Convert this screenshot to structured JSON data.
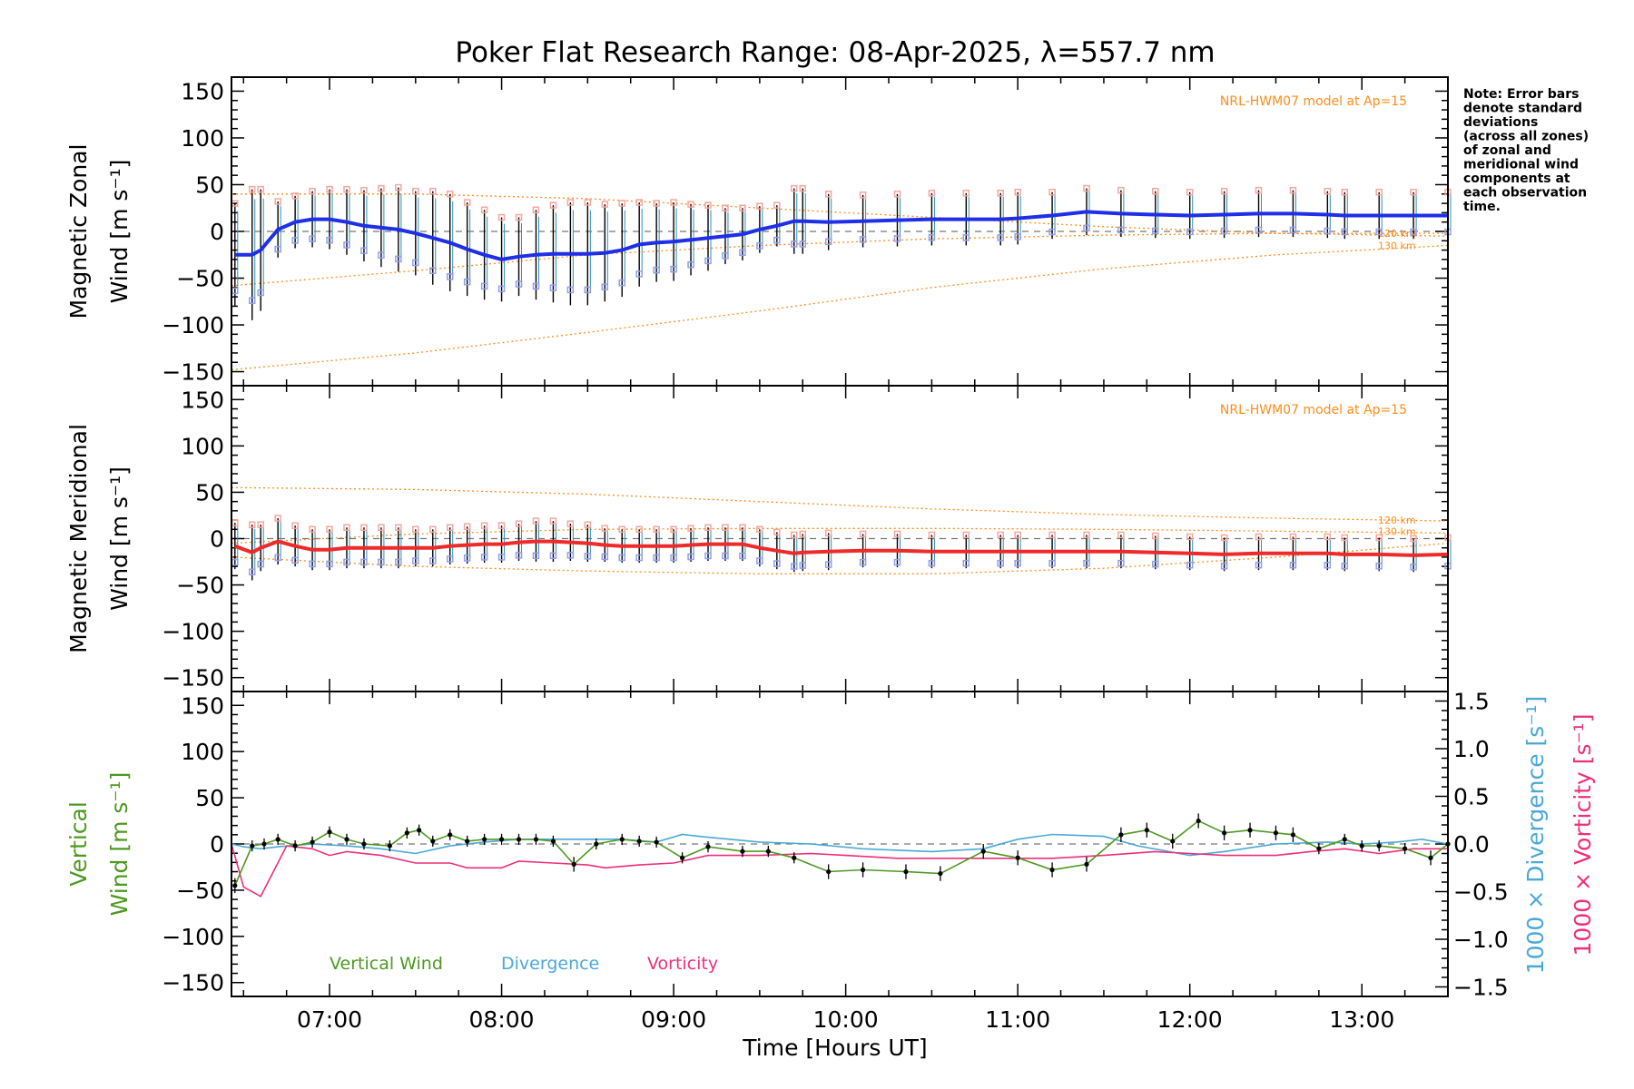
{
  "figure": {
    "title": "Poker Flat Research Range: 08-Apr-2025, λ=557.7 nm",
    "note_lines": [
      "Note: Error bars",
      "denote standard",
      "deviations",
      "(across all zones)",
      "of zonal and",
      "meridional wind",
      "components at",
      "each observation",
      "time."
    ],
    "xlabel": "Time [Hours UT]",
    "model_label": "NRL-HWM07 model at Ap=15",
    "alt_labels": [
      "120 km",
      "130 km"
    ]
  },
  "colors": {
    "zonal": "#1f2fe8",
    "meridional": "#ee2a2a",
    "vertical": "#4d9a1f",
    "divergence": "#4aa8d8",
    "vorticity": "#ee2f7a",
    "model": "#ff8c1a",
    "zone_low": "#8fa0ee",
    "zone_high": "#f4a7a0"
  },
  "chart_data": [
    {
      "type": "line",
      "name": "zonal",
      "ylabel_lines": [
        "Magnetic Zonal",
        "Wind [m s⁻¹]"
      ],
      "xlim": [
        6.43,
        13.5
      ],
      "ylim": [
        -165,
        165
      ],
      "yticks": [
        150,
        100,
        50,
        0,
        -50,
        -100,
        -150
      ],
      "xticks": [
        "07:00",
        "08:00",
        "09:00",
        "10:00",
        "11:00",
        "12:00",
        "13:00"
      ],
      "x": [
        6.45,
        6.55,
        6.6,
        6.7,
        6.8,
        6.9,
        7.0,
        7.1,
        7.2,
        7.3,
        7.4,
        7.5,
        7.6,
        7.7,
        7.8,
        7.9,
        8.0,
        8.1,
        8.2,
        8.3,
        8.4,
        8.5,
        8.6,
        8.7,
        8.8,
        8.9,
        9.0,
        9.1,
        9.2,
        9.3,
        9.4,
        9.5,
        9.6,
        9.7,
        9.75,
        9.9,
        10.1,
        10.3,
        10.5,
        10.7,
        10.9,
        11.0,
        11.2,
        11.4,
        11.6,
        11.8,
        12.0,
        12.2,
        12.4,
        12.6,
        12.8,
        12.9,
        13.1,
        13.3,
        13.5
      ],
      "values": [
        -25,
        -25,
        -20,
        2,
        10,
        13,
        13,
        10,
        6,
        4,
        2,
        -2,
        -7,
        -12,
        -19,
        -25,
        -30,
        -27,
        -25,
        -24,
        -24,
        -24,
        -23,
        -20,
        -14,
        -12,
        -11,
        -9,
        -7,
        -5,
        -3,
        2,
        6,
        11,
        11,
        10,
        11,
        12,
        13,
        13,
        13,
        14,
        17,
        21,
        19,
        18,
        17,
        18,
        19,
        19,
        18,
        17,
        17,
        17,
        17
      ],
      "error": [
        55,
        70,
        65,
        30,
        28,
        30,
        32,
        35,
        38,
        42,
        45,
        45,
        50,
        52,
        50,
        48,
        45,
        42,
        48,
        52,
        55,
        55,
        52,
        50,
        45,
        42,
        42,
        38,
        35,
        30,
        28,
        25,
        22,
        35,
        35,
        30,
        28,
        28,
        28,
        28,
        28,
        28,
        25,
        25,
        25,
        25,
        25,
        25,
        25,
        25,
        25,
        25,
        25,
        25,
        25
      ],
      "model_120": {
        "x": [
          6.43,
          7.5,
          8.5,
          9.5,
          10.5,
          11.5,
          12.5,
          13.5
        ],
        "values": [
          -58,
          -42,
          -25,
          -15,
          -8,
          -4,
          -2,
          -2
        ]
      },
      "model_130": {
        "x": [
          6.43,
          7.5,
          8.5,
          9.5,
          10.5,
          11.5,
          12.5,
          13.5
        ],
        "values": [
          -148,
          -130,
          -108,
          -85,
          -60,
          -40,
          -25,
          -15
        ]
      },
      "model_upper": {
        "x": [
          6.43,
          7.5,
          8.5,
          9.5,
          10.5,
          11.5,
          12.5,
          13.5
        ],
        "values": [
          40,
          40,
          35,
          25,
          15,
          5,
          -2,
          -5
        ]
      }
    },
    {
      "type": "line",
      "name": "meridional",
      "ylabel_lines": [
        "Magnetic Meridional",
        "Wind [m s⁻¹]"
      ],
      "xlim": [
        6.43,
        13.5
      ],
      "ylim": [
        -165,
        165
      ],
      "yticks": [
        150,
        100,
        50,
        0,
        -50,
        -100,
        -150
      ],
      "x": [
        6.45,
        6.55,
        6.6,
        6.7,
        6.8,
        6.9,
        7.0,
        7.1,
        7.2,
        7.3,
        7.4,
        7.5,
        7.6,
        7.7,
        7.8,
        7.9,
        8.0,
        8.1,
        8.2,
        8.3,
        8.4,
        8.5,
        8.6,
        8.7,
        8.8,
        8.9,
        9.0,
        9.1,
        9.2,
        9.3,
        9.4,
        9.5,
        9.6,
        9.7,
        9.75,
        9.9,
        10.1,
        10.3,
        10.5,
        10.7,
        10.9,
        11.0,
        11.2,
        11.4,
        11.6,
        11.8,
        12.0,
        12.2,
        12.4,
        12.6,
        12.8,
        12.9,
        13.1,
        13.3,
        13.5
      ],
      "values": [
        -8,
        -15,
        -10,
        -3,
        -8,
        -12,
        -12,
        -10,
        -10,
        -10,
        -10,
        -10,
        -10,
        -8,
        -7,
        -6,
        -6,
        -4,
        -3,
        -3,
        -4,
        -5,
        -7,
        -8,
        -8,
        -8,
        -8,
        -7,
        -6,
        -6,
        -6,
        -10,
        -13,
        -16,
        -15,
        -14,
        -13,
        -13,
        -14,
        -14,
        -14,
        -14,
        -14,
        -14,
        -14,
        -15,
        -16,
        -17,
        -16,
        -16,
        -16,
        -17,
        -17,
        -18,
        -17
      ],
      "error": [
        25,
        30,
        25,
        25,
        22,
        22,
        22,
        22,
        22,
        22,
        22,
        20,
        20,
        20,
        20,
        20,
        20,
        20,
        22,
        22,
        20,
        20,
        18,
        18,
        18,
        18,
        18,
        18,
        18,
        18,
        18,
        20,
        20,
        20,
        20,
        20,
        18,
        18,
        18,
        18,
        18,
        18,
        18,
        18,
        18,
        18,
        18,
        18,
        18,
        18,
        18,
        18,
        18,
        18,
        18
      ],
      "model_upper": {
        "x": [
          6.43,
          7.5,
          8.5,
          9.5,
          10.5,
          11.5,
          12.5,
          13.5
        ],
        "values": [
          55,
          53,
          48,
          40,
          32,
          26,
          22,
          19
        ]
      },
      "model_120": {
        "x": [
          6.43,
          7.5,
          8.5,
          9.5,
          10.5,
          11.5,
          12.5,
          13.5
        ],
        "values": [
          -5,
          5,
          10,
          11,
          11,
          10,
          8,
          6
        ]
      },
      "model_130": {
        "x": [
          6.43,
          7.5,
          8.5,
          9.5,
          10.5,
          11.5,
          12.5,
          13.5
        ],
        "values": [
          -20,
          -30,
          -35,
          -38,
          -38,
          -32,
          -20,
          -5
        ]
      }
    },
    {
      "type": "line",
      "name": "vertical",
      "ylabel_lines": [
        "Vertical",
        "Wind [m s⁻¹]"
      ],
      "ylabel_right_div": "1000 × Divergence [s⁻¹]",
      "ylabel_right_vort": "1000 × Vorticity [s⁻¹]",
      "xlim": [
        6.43,
        13.5
      ],
      "ylim": [
        -165,
        165
      ],
      "yticks": [
        150,
        100,
        50,
        0,
        -50,
        -100,
        -150
      ],
      "ylim_right": [
        -1.6,
        1.6
      ],
      "yticks_right": [
        1.5,
        1.0,
        0.5,
        0.0,
        -0.5,
        -1.0,
        -1.5
      ],
      "legend": [
        "Vertical Wind",
        "Divergence",
        "Vorticity"
      ],
      "vertical": {
        "x": [
          6.45,
          6.55,
          6.62,
          6.7,
          6.8,
          6.9,
          7.0,
          7.1,
          7.2,
          7.35,
          7.45,
          7.52,
          7.6,
          7.7,
          7.8,
          7.9,
          8.0,
          8.1,
          8.2,
          8.3,
          8.42,
          8.55,
          8.7,
          8.8,
          8.9,
          9.05,
          9.2,
          9.4,
          9.55,
          9.7,
          9.9,
          10.1,
          10.35,
          10.55,
          10.8,
          11.0,
          11.2,
          11.4,
          11.6,
          11.75,
          11.9,
          12.05,
          12.2,
          12.35,
          12.5,
          12.6,
          12.75,
          12.9,
          13.0,
          13.1,
          13.25,
          13.4,
          13.5
        ],
        "values": [
          -45,
          -2,
          0,
          5,
          -2,
          2,
          13,
          5,
          0,
          -2,
          12,
          15,
          3,
          10,
          3,
          5,
          5,
          5,
          5,
          3,
          -22,
          0,
          5,
          3,
          2,
          -15,
          -3,
          -8,
          -8,
          -15,
          -30,
          -28,
          -30,
          -32,
          -8,
          -15,
          -28,
          -22,
          10,
          15,
          3,
          25,
          12,
          15,
          12,
          10,
          -5,
          5,
          -2,
          -2,
          -5,
          -15,
          0
        ],
        "error": [
          8,
          6,
          6,
          6,
          6,
          6,
          6,
          6,
          6,
          6,
          6,
          6,
          6,
          6,
          6,
          6,
          6,
          6,
          6,
          6,
          8,
          6,
          6,
          6,
          6,
          6,
          6,
          6,
          6,
          6,
          8,
          8,
          8,
          8,
          8,
          8,
          8,
          8,
          8,
          8,
          8,
          8,
          8,
          8,
          8,
          8,
          6,
          6,
          6,
          6,
          6,
          8,
          6
        ]
      },
      "divergence": {
        "x": [
          6.43,
          6.5,
          6.6,
          6.7,
          6.9,
          7.1,
          7.3,
          7.5,
          7.7,
          7.9,
          8.1,
          8.3,
          8.5,
          8.7,
          8.9,
          9.05,
          9.2,
          9.5,
          9.8,
          10.1,
          10.5,
          10.8,
          11.0,
          11.2,
          11.5,
          11.7,
          12.0,
          12.2,
          12.5,
          12.8,
          13.0,
          13.2,
          13.35,
          13.5
        ],
        "values": [
          0.0,
          -0.03,
          -0.05,
          -0.03,
          0.0,
          -0.02,
          -0.05,
          -0.1,
          -0.02,
          0.02,
          0.05,
          0.05,
          0.05,
          0.05,
          0.02,
          0.1,
          0.07,
          0.02,
          0.0,
          -0.05,
          -0.08,
          -0.05,
          0.05,
          0.1,
          0.08,
          -0.02,
          -0.12,
          -0.08,
          0.0,
          0.02,
          0.0,
          0.02,
          0.05,
          0.0
        ]
      },
      "vorticity": {
        "x": [
          6.43,
          6.5,
          6.6,
          6.75,
          6.9,
          7.0,
          7.1,
          7.3,
          7.5,
          7.7,
          7.8,
          8.0,
          8.1,
          8.3,
          8.5,
          8.6,
          8.8,
          9.0,
          9.2,
          9.5,
          9.8,
          10.0,
          10.3,
          10.6,
          10.9,
          11.2,
          11.5,
          11.8,
          12.0,
          12.2,
          12.5,
          12.7,
          12.9,
          13.1,
          13.3,
          13.5
        ],
        "values": [
          0.0,
          -0.45,
          -0.55,
          -0.02,
          -0.05,
          -0.12,
          -0.08,
          -0.12,
          -0.2,
          -0.2,
          -0.25,
          -0.25,
          -0.18,
          -0.2,
          -0.22,
          -0.25,
          -0.22,
          -0.2,
          -0.12,
          -0.12,
          -0.1,
          -0.12,
          -0.15,
          -0.15,
          -0.15,
          -0.15,
          -0.12,
          -0.08,
          -0.1,
          -0.12,
          -0.12,
          -0.08,
          -0.05,
          -0.1,
          -0.05,
          -0.05
        ]
      }
    }
  ]
}
